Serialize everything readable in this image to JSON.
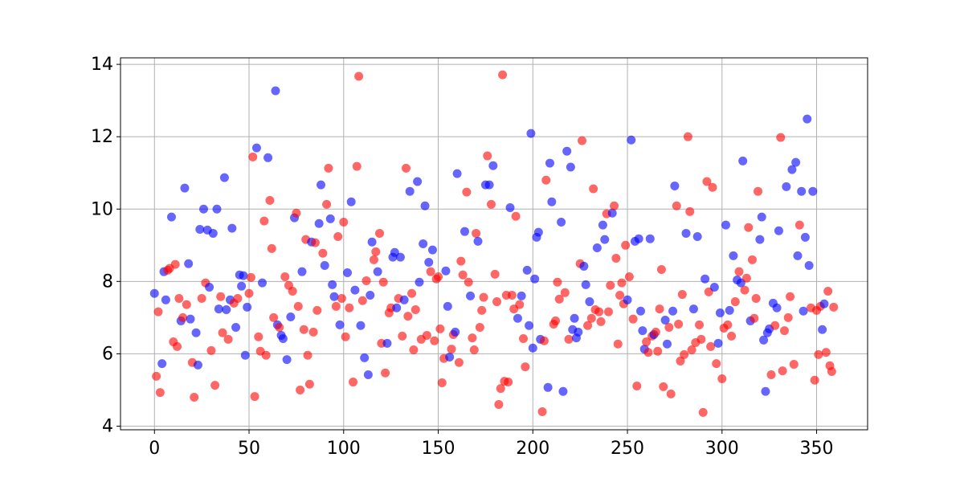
{
  "chart_data": {
    "type": "scatter",
    "x": [
      0,
      1,
      2,
      3,
      4,
      5,
      6,
      7,
      8,
      9,
      10,
      11,
      12,
      13,
      14,
      15,
      16,
      17,
      18,
      19,
      20,
      21,
      22,
      23,
      24,
      25,
      26,
      27,
      28,
      29,
      30,
      31,
      32,
      33,
      34,
      35,
      36,
      37,
      38,
      39,
      40,
      41,
      42,
      43,
      44,
      45,
      46,
      47,
      48,
      49,
      50,
      51,
      52,
      53,
      54,
      55,
      56,
      57,
      58,
      59,
      60,
      61,
      62,
      63,
      64,
      65,
      66,
      67,
      68,
      69,
      70,
      71,
      72,
      73,
      74,
      75,
      76,
      77,
      78,
      79,
      80,
      81,
      82,
      83,
      84,
      85,
      86,
      87,
      88,
      89,
      90,
      91,
      92,
      93,
      94,
      95,
      96,
      97,
      98,
      99,
      100,
      101,
      102,
      103,
      104,
      105,
      106,
      107,
      108,
      109,
      110,
      111,
      112,
      113,
      114,
      115,
      116,
      117,
      118,
      119,
      120,
      121,
      122,
      123,
      124,
      125,
      126,
      127,
      128,
      129,
      130,
      131,
      132,
      133,
      134,
      135,
      136,
      137,
      138,
      139,
      140,
      141,
      142,
      143,
      144,
      145,
      146,
      147,
      148,
      149,
      150,
      151,
      152,
      153,
      154,
      155,
      156,
      157,
      158,
      159,
      160,
      161,
      162,
      163,
      164,
      165,
      166,
      167,
      168,
      169,
      170,
      171,
      172,
      173,
      174,
      175,
      176,
      177,
      178,
      179,
      180,
      181,
      182,
      183,
      184,
      185,
      186,
      187,
      188,
      189,
      190,
      191,
      192,
      193,
      194,
      195,
      196,
      197,
      198,
      199,
      200,
      201,
      202,
      203,
      204,
      205,
      206,
      207,
      208,
      209,
      210,
      211,
      212,
      213,
      214,
      215,
      216,
      217,
      218,
      219,
      220,
      221,
      222,
      223,
      224,
      225,
      226,
      227,
      228,
      229,
      230,
      231,
      232,
      233,
      234,
      235,
      236,
      237,
      238,
      239,
      240,
      241,
      242,
      243,
      244,
      245,
      246,
      247,
      248,
      249,
      250,
      251,
      252,
      253,
      254,
      255,
      256,
      257,
      258,
      259,
      260,
      261,
      262,
      263,
      264,
      265,
      266,
      267,
      268,
      269,
      270,
      271,
      272,
      273,
      274,
      275,
      276,
      277,
      278,
      279,
      280,
      281,
      282,
      283,
      284,
      285,
      286,
      287,
      288,
      289,
      290,
      291,
      292,
      293,
      294,
      295,
      296,
      297,
      298,
      299,
      300,
      301,
      302,
      303,
      304,
      305,
      306,
      307,
      308,
      309,
      310,
      311,
      312,
      313,
      314,
      315,
      316,
      317,
      318,
      319,
      320,
      321,
      322,
      323,
      324,
      325,
      326,
      327,
      328,
      329,
      330,
      331,
      332,
      333,
      334,
      335,
      336,
      337,
      338,
      339,
      340,
      341,
      342,
      343,
      344,
      345,
      346,
      347,
      348,
      349,
      350,
      351,
      352,
      353,
      354,
      355,
      356,
      357,
      358,
      359
    ],
    "values": [
      7.67,
      5.38,
      7.16,
      4.93,
      5.73,
      8.27,
      7.49,
      8.31,
      8.36,
      9.78,
      6.33,
      8.47,
      6.2,
      7.53,
      6.91,
      7.0,
      10.58,
      7.36,
      8.49,
      6.96,
      5.76,
      4.8,
      6.58,
      5.69,
      9.44,
      7.53,
      10.0,
      7.96,
      9.42,
      7.84,
      6.09,
      9.33,
      5.13,
      10.0,
      7.24,
      7.58,
      6.58,
      10.87,
      7.22,
      6.4,
      7.49,
      9.47,
      7.4,
      6.73,
      7.53,
      8.18,
      7.87,
      8.16,
      5.96,
      7.29,
      7.67,
      8.11,
      11.44,
      4.82,
      11.69,
      6.47,
      6.07,
      7.96,
      9.67,
      5.96,
      11.42,
      10.24,
      8.91,
      7.0,
      13.27,
      6.8,
      6.73,
      6.51,
      6.42,
      8.13,
      5.84,
      7.89,
      7.02,
      7.73,
      9.76,
      9.89,
      7.31,
      5.0,
      8.27,
      6.67,
      9.16,
      5.96,
      5.16,
      9.09,
      6.6,
      9.07,
      7.2,
      9.6,
      10.67,
      8.78,
      8.44,
      10.13,
      11.13,
      9.73,
      7.91,
      7.58,
      7.31,
      9.24,
      6.8,
      7.53,
      9.64,
      6.47,
      8.24,
      7.27,
      10.2,
      5.22,
      7.76,
      11.18,
      13.67,
      6.78,
      7.47,
      5.89,
      8.02,
      5.42,
      7.62,
      9.09,
      8.6,
      8.82,
      8.27,
      9.33,
      6.29,
      7.98,
      5.47,
      6.29,
      7.13,
      7.27,
      8.67,
      8.8,
      7.27,
      7.53,
      8.67,
      6.49,
      7.49,
      11.13,
      7.04,
      10.49,
      7.67,
      6.11,
      7.22,
      10.76,
      7.98,
      6.4,
      9.04,
      10.09,
      6.51,
      8.53,
      8.27,
      8.87,
      6.36,
      8.07,
      8.13,
      6.69,
      5.2,
      5.87,
      8.29,
      7.31,
      5.91,
      6.13,
      6.53,
      6.6,
      10.98,
      5.76,
      8.56,
      8.18,
      9.38,
      10.47,
      7.98,
      7.6,
      6.44,
      6.11,
      9.33,
      9.11,
      6.73,
      7.2,
      7.56,
      10.67,
      11.47,
      10.67,
      10.13,
      11.2,
      8.2,
      7.44,
      4.6,
      5.04,
      13.71,
      5.24,
      7.62,
      5.22,
      10.04,
      7.62,
      7.24,
      9.8,
      6.98,
      7.36,
      7.6,
      6.42,
      5.64,
      8.31,
      6.78,
      12.09,
      6.16,
      8.07,
      9.22,
      9.36,
      6.4,
      4.4,
      6.36,
      10.8,
      5.07,
      11.27,
      10.2,
      6.82,
      6.91,
      7.98,
      7.51,
      9.64,
      4.96,
      7.69,
      11.6,
      6.4,
      11.16,
      6.67,
      6.98,
      6.44,
      6.6,
      8.49,
      11.89,
      8.42,
      7.91,
      6.78,
      7.44,
      6.98,
      10.56,
      7.22,
      8.93,
      7.16,
      6.89,
      9.56,
      9.16,
      9.87,
      7.16,
      7.89,
      9.89,
      10.09,
      8.64,
      6.27,
      7.62,
      7.96,
      7.38,
      9.0,
      7.49,
      8.13,
      11.91,
      6.96,
      9.11,
      5.11,
      9.18,
      7.18,
      6.64,
      6.13,
      6.33,
      6.04,
      9.18,
      6.49,
      6.53,
      6.6,
      6.07,
      7.24,
      8.33,
      5.09,
      6.93,
      6.27,
      6.73,
      4.89,
      7.18,
      10.64,
      10.09,
      6.82,
      5.8,
      7.64,
      5.98,
      9.33,
      12.0,
      9.93,
      6.11,
      7.24,
      6.31,
      9.24,
      6.8,
      6.4,
      4.38,
      8.07,
      10.76,
      7.71,
      6.2,
      10.6,
      7.84,
      5.73,
      6.29,
      7.13,
      5.31,
      6.71,
      9.56,
      6.8,
      7.2,
      6.49,
      8.71,
      7.44,
      8.04,
      8.27,
      7.96,
      11.33,
      7.76,
      8.09,
      9.49,
      6.91,
      8.6,
      6.98,
      7.53,
      10.49,
      9.16,
      9.78,
      6.38,
      4.96,
      6.58,
      6.69,
      5.42,
      7.4,
      6.78,
      7.27,
      9.4,
      11.98,
      5.53,
      6.64,
      10.62,
      7.0,
      7.58,
      11.09,
      5.71,
      11.29,
      8.71,
      9.56,
      10.49,
      7.18,
      9.22,
      12.49,
      8.44,
      7.27,
      10.49,
      5.27,
      7.2,
      5.98,
      7.31,
      6.67,
      7.38,
      6.04,
      7.73,
      5.67,
      5.51,
      7.29
    ],
    "colors": [
      "blue",
      "red",
      "red",
      "red",
      "blue",
      "blue",
      "blue",
      "red",
      "red",
      "blue",
      "red",
      "red",
      "red",
      "red",
      "blue",
      "red",
      "blue",
      "red",
      "blue",
      "blue",
      "red",
      "red",
      "blue",
      "blue",
      "blue",
      "red",
      "blue",
      "red",
      "blue",
      "blue",
      "red",
      "blue",
      "red",
      "blue",
      "blue",
      "red",
      "red",
      "blue",
      "blue",
      "red",
      "blue",
      "blue",
      "red",
      "blue",
      "red",
      "blue",
      "blue",
      "blue",
      "blue",
      "blue",
      "red",
      "red",
      "red",
      "red",
      "blue",
      "red",
      "red",
      "blue",
      "red",
      "red",
      "blue",
      "red",
      "red",
      "red",
      "blue",
      "blue",
      "red",
      "blue",
      "blue",
      "red",
      "blue",
      "red",
      "blue",
      "red",
      "blue",
      "red",
      "red",
      "red",
      "blue",
      "red",
      "red",
      "red",
      "red",
      "blue",
      "red",
      "red",
      "red",
      "blue",
      "blue",
      "red",
      "blue",
      "red",
      "red",
      "blue",
      "blue",
      "blue",
      "red",
      "red",
      "blue",
      "red",
      "red",
      "red",
      "blue",
      "red",
      "blue",
      "red",
      "blue",
      "red",
      "red",
      "blue",
      "red",
      "blue",
      "red",
      "blue",
      "blue",
      "blue",
      "red",
      "red",
      "blue",
      "red",
      "red",
      "red",
      "red",
      "blue",
      "red",
      "red",
      "blue",
      "blue",
      "blue",
      "red",
      "blue",
      "red",
      "blue",
      "red",
      "red",
      "blue",
      "red",
      "red",
      "red",
      "blue",
      "blue",
      "red",
      "blue",
      "blue",
      "red",
      "blue",
      "red",
      "blue",
      "red",
      "red",
      "red",
      "red",
      "red",
      "red",
      "blue",
      "blue",
      "blue",
      "red",
      "red",
      "blue",
      "blue",
      "red",
      "red",
      "red",
      "blue",
      "red",
      "red",
      "blue",
      "red",
      "red",
      "red",
      "blue",
      "red",
      "red",
      "red",
      "blue",
      "red",
      "blue",
      "red",
      "blue",
      "red",
      "red",
      "red",
      "red",
      "red",
      "red",
      "red",
      "red",
      "blue",
      "red",
      "red",
      "red",
      "blue",
      "red",
      "blue",
      "red",
      "red",
      "blue",
      "blue",
      "blue",
      "blue",
      "blue",
      "blue",
      "blue",
      "blue",
      "red",
      "red",
      "red",
      "blue",
      "blue",
      "blue",
      "red",
      "red",
      "red",
      "red",
      "blue",
      "blue",
      "red",
      "blue",
      "red",
      "blue",
      "blue",
      "blue",
      "blue",
      "blue",
      "red",
      "red",
      "blue",
      "blue",
      "red",
      "blue",
      "red",
      "red",
      "red",
      "blue",
      "red",
      "red",
      "blue",
      "blue",
      "red",
      "red",
      "red",
      "blue",
      "red",
      "red",
      "red",
      "red",
      "red",
      "red",
      "red",
      "blue",
      "red",
      "blue",
      "red",
      "blue",
      "red",
      "blue",
      "blue",
      "blue",
      "blue",
      "red",
      "red",
      "blue",
      "red",
      "blue",
      "red",
      "red",
      "red",
      "red",
      "red",
      "blue",
      "blue",
      "red",
      "red",
      "blue",
      "blue",
      "red",
      "red",
      "red",
      "red",
      "red",
      "blue",
      "red",
      "red",
      "red",
      "blue",
      "red",
      "blue",
      "red",
      "red",
      "red",
      "blue",
      "red",
      "red",
      "red",
      "red",
      "blue",
      "red",
      "blue",
      "blue",
      "red",
      "red",
      "blue",
      "red",
      "blue",
      "red",
      "blue",
      "red",
      "blue",
      "red",
      "blue",
      "blue",
      "red",
      "red",
      "red",
      "blue",
      "red",
      "red",
      "red",
      "red",
      "blue",
      "blue",
      "blue",
      "blue",
      "blue",
      "blue",
      "red",
      "blue",
      "red",
      "blue",
      "blue",
      "red",
      "red",
      "red",
      "blue",
      "red",
      "red",
      "blue",
      "red",
      "blue",
      "blue",
      "red",
      "blue",
      "blue",
      "blue",
      "blue",
      "blue",
      "red",
      "blue",
      "red",
      "red",
      "red",
      "red",
      "blue",
      "blue",
      "red",
      "red",
      "red",
      "red",
      "red"
    ],
    "alpha": 0.6,
    "xlim": [
      -17.95,
      376.95
    ],
    "xticks": [
      0,
      50,
      100,
      150,
      200,
      250,
      300,
      350
    ],
    "ylim": [
      3.9,
      14.18
    ],
    "yticks": [
      4,
      6,
      8,
      10,
      12,
      14
    ],
    "grid": true
  }
}
